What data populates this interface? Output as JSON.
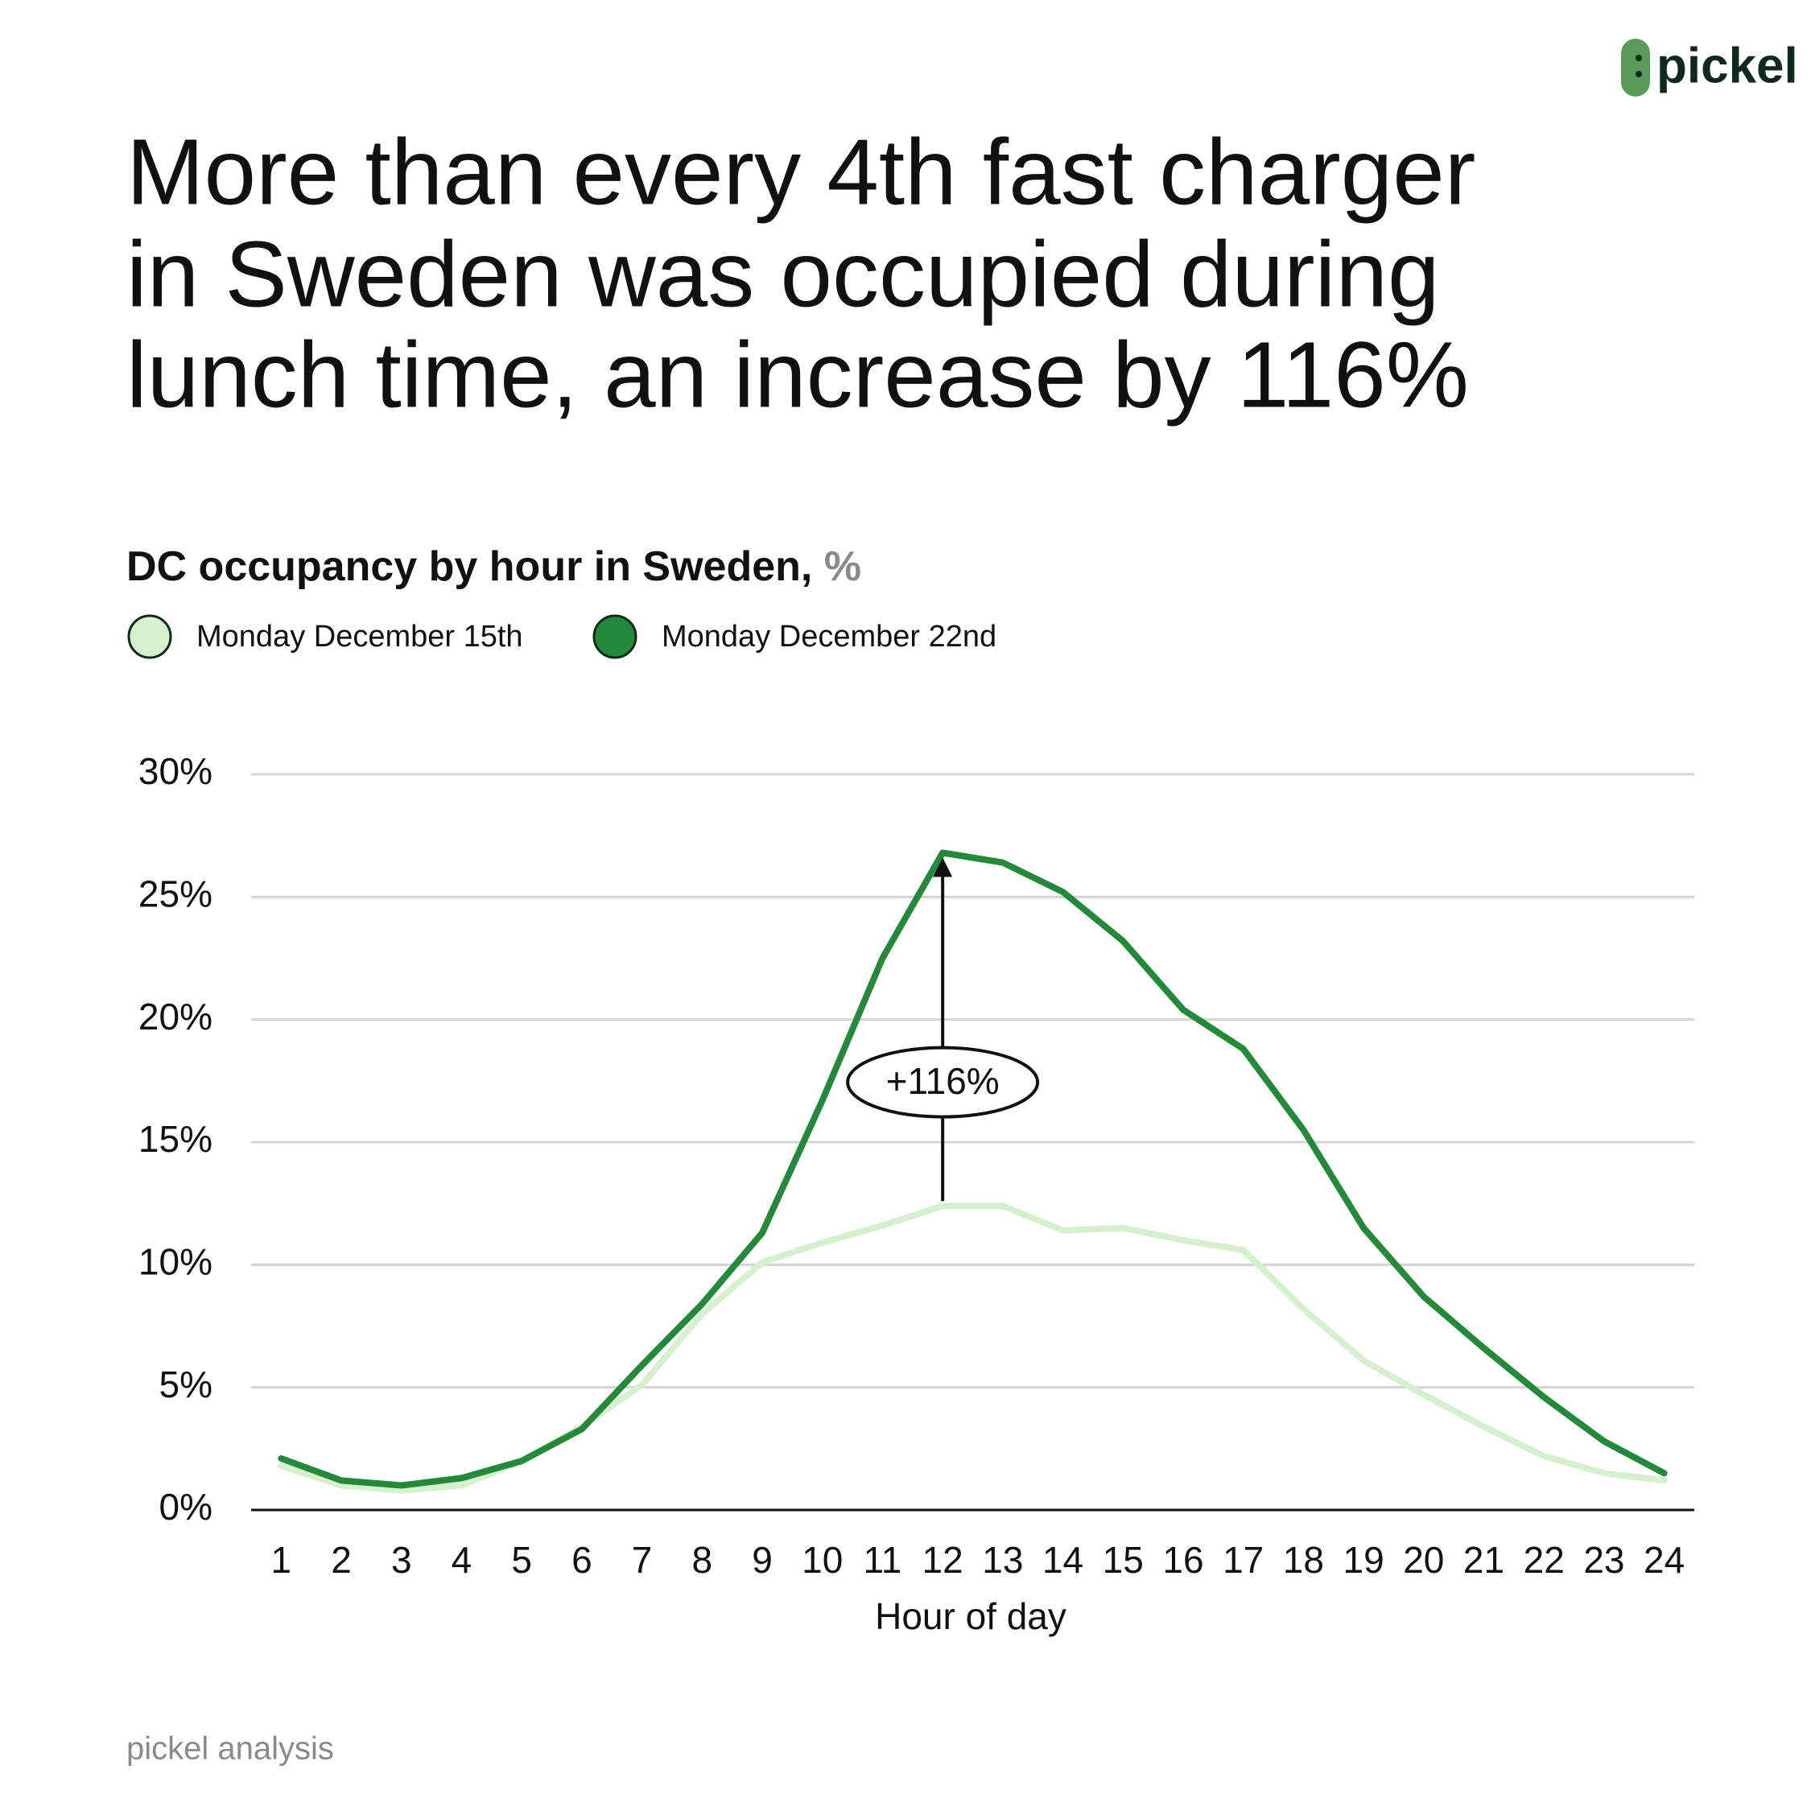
{
  "logo": "pickel",
  "title_lines": [
    "More than every 4th fast charger",
    "in Sweden was occupied during",
    "lunch time, an increase by 116%"
  ],
  "footer": "pickel analysis",
  "chart_data": {
    "type": "line",
    "subtitle": "DC occupancy by hour in Sweden,",
    "unit": "%",
    "x_label": "Hour of day",
    "x": [
      1,
      2,
      3,
      4,
      5,
      6,
      7,
      8,
      9,
      10,
      11,
      12,
      13,
      14,
      15,
      16,
      17,
      18,
      19,
      20,
      21,
      22,
      23,
      24
    ],
    "xlim": [
      0.5,
      24.5
    ],
    "xticks": [
      1,
      2,
      3,
      4,
      5,
      6,
      7,
      8,
      9,
      10,
      11,
      12,
      13,
      14,
      15,
      16,
      17,
      18,
      19,
      20,
      21,
      22,
      23,
      24
    ],
    "ylim": [
      0,
      30
    ],
    "yticks": [
      {
        "value": 0,
        "label": "0%"
      },
      {
        "value": 5,
        "label": "5%"
      },
      {
        "value": 10,
        "label": "10%"
      },
      {
        "value": 15,
        "label": "15%"
      },
      {
        "value": 20,
        "label": "20%"
      },
      {
        "value": 25,
        "label": "25%"
      },
      {
        "value": 30,
        "label": "30%"
      }
    ],
    "grid": true,
    "series": [
      {
        "name": "Monday December 15th",
        "color": "#d6efcf",
        "values": [
          1.8,
          1.0,
          0.8,
          1.0,
          2.0,
          3.4,
          5.1,
          8.0,
          10.1,
          10.9,
          11.6,
          12.4,
          12.4,
          11.4,
          11.5,
          11.0,
          10.6,
          8.2,
          6.1,
          4.7,
          3.4,
          2.2,
          1.5,
          1.2
        ]
      },
      {
        "name": "Monday December 22nd",
        "color": "#238a3a",
        "values": [
          2.1,
          1.2,
          1.0,
          1.3,
          2.0,
          3.3,
          5.9,
          8.4,
          11.3,
          16.7,
          22.5,
          26.8,
          26.4,
          25.2,
          23.2,
          20.4,
          18.8,
          15.5,
          11.5,
          8.7,
          6.6,
          4.6,
          2.8,
          1.5
        ]
      }
    ],
    "annotation": {
      "text": "+116%",
      "x": 12
    }
  }
}
